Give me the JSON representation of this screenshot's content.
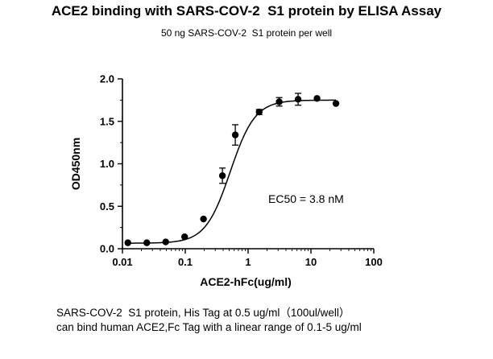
{
  "chart_data": {
    "type": "scatter",
    "title": "ACE2 binding with SARS-COV-2  S1 protein by ELISA Assay",
    "subtitle": "50 ng SARS-COV-2  S1 protein per well",
    "xlabel": "ACE2-hFc(ug/ml)",
    "ylabel": "OD450nm",
    "xscale": "log",
    "xlim": [
      0.01,
      100
    ],
    "ylim": [
      0.0,
      2.0
    ],
    "x_ticks": [
      "0.01",
      "0.1",
      "1",
      "10",
      "100"
    ],
    "y_ticks": [
      "0.0",
      "0.5",
      "1.0",
      "1.5",
      "2.0"
    ],
    "annotation": "EC50 = 3.8 nM",
    "grid": false,
    "series": [
      {
        "x": [
          0.0122,
          0.0244,
          0.0488,
          0.0977,
          0.195,
          0.39,
          0.625,
          1.5,
          3.125,
          6.25,
          12.5,
          25
        ],
        "y": [
          0.07,
          0.07,
          0.08,
          0.14,
          0.35,
          0.86,
          1.34,
          1.61,
          1.73,
          1.76,
          1.77,
          1.71
        ],
        "error": [
          0.0,
          0.0,
          0.0,
          0.0,
          0.0,
          0.09,
          0.12,
          0.03,
          0.05,
          0.07,
          0.0,
          0.0
        ]
      }
    ],
    "fit_curve": {
      "bottom": 0.065,
      "top": 1.75,
      "ec50": 0.52,
      "hill": 2.2
    }
  },
  "caption": {
    "line1": "SARS-COV-2  S1 protein, His Tag at 0.5 ug/ml（100ul/well）",
    "line2": "can bind human ACE2,Fc Tag with a linear range of 0.1-5 ug/ml"
  }
}
